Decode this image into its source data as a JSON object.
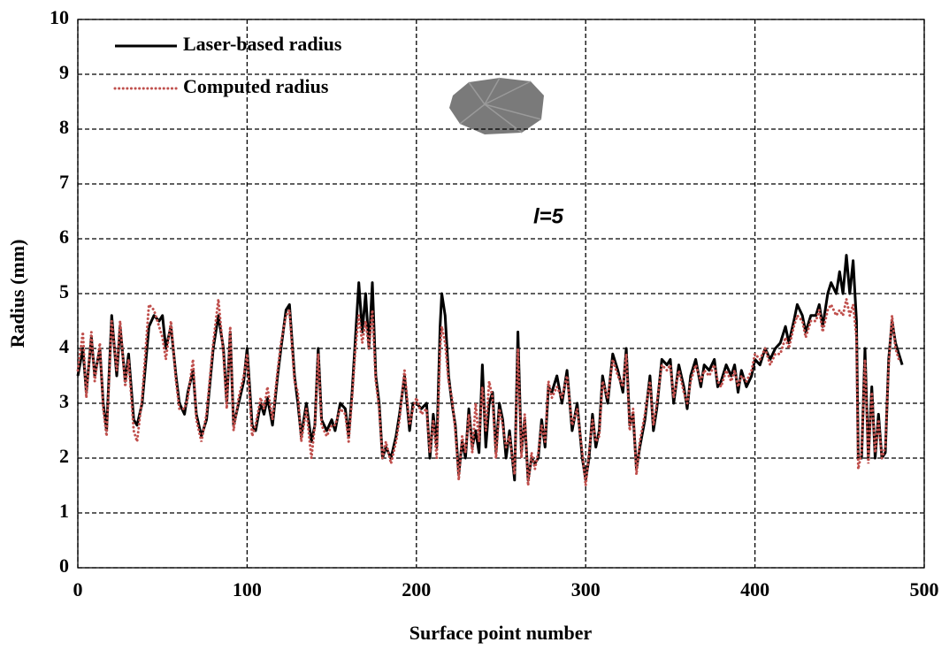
{
  "chart_data": {
    "type": "line",
    "xlabel": "Surface point number",
    "ylabel": "Radius (mm)",
    "annotation": "l=5",
    "xlim": [
      0,
      500
    ],
    "xticks": [
      0,
      100,
      200,
      300,
      400,
      500
    ],
    "ylim": [
      0,
      10
    ],
    "yticks": [
      0,
      1,
      2,
      3,
      4,
      5,
      6,
      7,
      8,
      9,
      10
    ],
    "grid": true,
    "legend": "upper left",
    "x": [
      0,
      3,
      5,
      8,
      10,
      13,
      15,
      17,
      20,
      23,
      25,
      28,
      30,
      33,
      35,
      38,
      42,
      45,
      48,
      50,
      52,
      55,
      58,
      60,
      63,
      65,
      68,
      70,
      73,
      76,
      80,
      83,
      86,
      88,
      90,
      92,
      95,
      98,
      100,
      103,
      105,
      108,
      110,
      112,
      115,
      118,
      120,
      123,
      125,
      128,
      130,
      132,
      135,
      138,
      140,
      142,
      144,
      147,
      150,
      152,
      155,
      158,
      160,
      162,
      164,
      166,
      168,
      170,
      172,
      174,
      176,
      178,
      180,
      182,
      185,
      188,
      190,
      193,
      196,
      198,
      200,
      203,
      206,
      208,
      210,
      212,
      214,
      215,
      217,
      219,
      221,
      223,
      225,
      227,
      229,
      231,
      233,
      235,
      237,
      239,
      241,
      243,
      245,
      247,
      249,
      251,
      253,
      255,
      258,
      260,
      262,
      264,
      266,
      268,
      270,
      272,
      274,
      276,
      278,
      280,
      283,
      286,
      289,
      292,
      295,
      298,
      300,
      302,
      304,
      306,
      308,
      310,
      313,
      316,
      319,
      322,
      324,
      326,
      328,
      330,
      332,
      335,
      338,
      340,
      342,
      345,
      348,
      350,
      352,
      355,
      358,
      360,
      362,
      365,
      368,
      370,
      373,
      376,
      378,
      380,
      383,
      386,
      388,
      390,
      392,
      395,
      398,
      400,
      403,
      406,
      409,
      412,
      415,
      418,
      420,
      423,
      425,
      428,
      430,
      433,
      436,
      438,
      440,
      443,
      445,
      448,
      450,
      452,
      454,
      456,
      458,
      460,
      461,
      463,
      465,
      467,
      469,
      471,
      473,
      475,
      477,
      479,
      481,
      483,
      485,
      487
    ],
    "series": [
      {
        "name": "Laser-based radius",
        "color": "#000000",
        "style": "solid",
        "values": [
          3.5,
          4.0,
          3.2,
          4.2,
          3.5,
          4.0,
          3.0,
          2.5,
          4.6,
          3.5,
          4.4,
          3.4,
          3.9,
          2.7,
          2.6,
          3.0,
          4.4,
          4.6,
          4.5,
          4.6,
          4.0,
          4.4,
          3.5,
          3.0,
          2.8,
          3.2,
          3.6,
          2.8,
          2.4,
          2.7,
          4.0,
          4.6,
          4.0,
          3.0,
          4.3,
          2.6,
          3.0,
          3.4,
          4.0,
          2.6,
          2.5,
          3.0,
          2.8,
          3.1,
          2.6,
          3.5,
          4.0,
          4.7,
          4.8,
          3.5,
          3.0,
          2.4,
          3.0,
          2.3,
          2.6,
          4.0,
          2.7,
          2.5,
          2.7,
          2.5,
          3.0,
          2.9,
          2.4,
          3.2,
          4.2,
          5.2,
          4.3,
          5.0,
          4.0,
          5.2,
          3.5,
          3.0,
          2.0,
          2.2,
          2.0,
          2.4,
          2.8,
          3.5,
          2.5,
          3.0,
          3.0,
          2.9,
          3.0,
          2.0,
          2.8,
          2.2,
          4.4,
          5.0,
          4.6,
          3.5,
          3.0,
          2.6,
          1.7,
          2.3,
          2.0,
          2.9,
          2.2,
          2.5,
          2.1,
          3.7,
          2.2,
          3.0,
          3.2,
          2.1,
          3.0,
          2.7,
          2.0,
          2.5,
          1.6,
          4.3,
          2.1,
          2.7,
          1.6,
          2.0,
          1.9,
          2.0,
          2.7,
          2.2,
          3.3,
          3.2,
          3.5,
          3.0,
          3.6,
          2.5,
          3.0,
          2.0,
          1.6,
          2.0,
          2.8,
          2.2,
          2.5,
          3.5,
          3.0,
          3.9,
          3.6,
          3.2,
          4.0,
          2.6,
          2.8,
          1.8,
          2.2,
          2.7,
          3.5,
          2.5,
          2.9,
          3.8,
          3.7,
          3.8,
          3.0,
          3.7,
          3.3,
          2.9,
          3.5,
          3.8,
          3.3,
          3.7,
          3.6,
          3.8,
          3.3,
          3.4,
          3.7,
          3.5,
          3.7,
          3.2,
          3.6,
          3.3,
          3.5,
          3.8,
          3.7,
          4.0,
          3.8,
          4.0,
          4.1,
          4.4,
          4.1,
          4.5,
          4.8,
          4.6,
          4.3,
          4.6,
          4.6,
          4.8,
          4.4,
          5.0,
          5.2,
          5.0,
          5.4,
          5.0,
          5.7,
          5.0,
          5.6,
          4.5,
          2.0,
          2.0,
          4.0,
          2.0,
          3.3,
          2.0,
          2.8,
          2.0,
          2.1,
          3.8,
          4.5,
          4.1,
          3.9,
          3.7
        ]
      },
      {
        "name": "Computed radius",
        "color": "#c0504d",
        "style": "dotted",
        "values": [
          3.6,
          4.3,
          3.1,
          4.3,
          3.4,
          4.1,
          2.9,
          2.4,
          4.5,
          3.6,
          4.5,
          3.3,
          3.8,
          2.5,
          2.3,
          3.1,
          4.8,
          4.7,
          4.4,
          4.2,
          3.8,
          4.5,
          3.4,
          2.9,
          2.9,
          3.1,
          3.8,
          2.7,
          2.3,
          2.8,
          4.1,
          4.9,
          3.9,
          2.9,
          4.4,
          2.5,
          3.1,
          3.5,
          3.9,
          2.4,
          2.6,
          3.1,
          2.9,
          3.3,
          2.7,
          3.6,
          4.1,
          4.6,
          4.7,
          3.4,
          3.2,
          2.3,
          2.9,
          2.0,
          2.6,
          3.9,
          2.6,
          2.4,
          2.6,
          2.6,
          2.9,
          2.8,
          2.3,
          3.1,
          4.0,
          4.6,
          4.1,
          4.5,
          4.0,
          4.7,
          3.4,
          2.9,
          2.0,
          2.3,
          1.9,
          2.3,
          2.7,
          3.6,
          2.6,
          2.9,
          3.1,
          2.8,
          2.9,
          2.1,
          2.7,
          2.0,
          4.0,
          4.4,
          4.1,
          3.4,
          3.1,
          2.5,
          1.6,
          2.4,
          2.1,
          2.8,
          2.1,
          3.0,
          2.3,
          3.3,
          2.5,
          3.4,
          3.1,
          2.0,
          2.9,
          2.6,
          2.2,
          2.4,
          1.7,
          4.0,
          2.0,
          2.8,
          1.5,
          2.1,
          1.8,
          2.1,
          2.6,
          2.3,
          3.4,
          3.1,
          3.3,
          3.1,
          3.5,
          2.6,
          2.9,
          2.1,
          1.5,
          2.1,
          2.7,
          2.3,
          2.4,
          3.4,
          3.1,
          3.8,
          3.5,
          3.3,
          3.9,
          2.5,
          2.9,
          1.7,
          2.3,
          2.8,
          3.4,
          2.6,
          3.0,
          3.7,
          3.6,
          3.7,
          3.1,
          3.6,
          3.2,
          3.0,
          3.4,
          3.7,
          3.4,
          3.6,
          3.5,
          3.7,
          3.4,
          3.3,
          3.6,
          3.4,
          3.6,
          3.3,
          3.5,
          3.4,
          3.6,
          3.9,
          3.8,
          4.0,
          3.7,
          3.9,
          3.9,
          4.2,
          4.0,
          4.4,
          4.6,
          4.5,
          4.2,
          4.5,
          4.5,
          4.7,
          4.3,
          4.7,
          4.8,
          4.6,
          4.7,
          4.6,
          4.9,
          4.6,
          4.8,
          4.2,
          1.8,
          2.1,
          3.8,
          1.9,
          3.2,
          2.1,
          2.7,
          2.0,
          2.2,
          3.7,
          4.6,
          4.0,
          3.8,
          3.8
        ]
      }
    ]
  }
}
